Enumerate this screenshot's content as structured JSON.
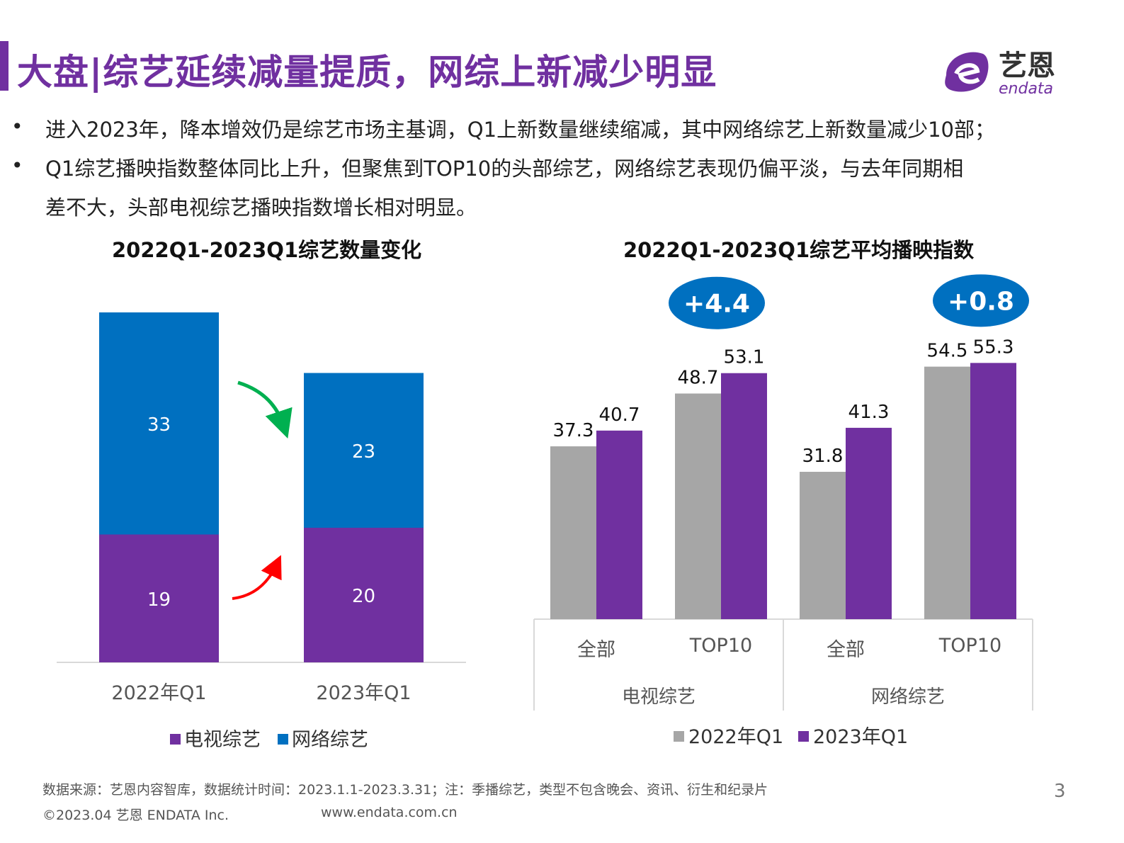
{
  "header": {
    "title": "大盘|综艺延续减量提质，网综上新减少明显",
    "logo_text": "艺恩",
    "logo_sub": "endata"
  },
  "bullets": [
    "进入2023年，降本增效仍是综艺市场主基调，Q1上新数量继续缩减，其中网络综艺上新数量减少10部；",
    "Q1综艺播映指数整体同比上升，但聚焦到TOP10的头部综艺，网络综艺表现仍偏平淡，与去年同期相",
    "差不大，头部电视综艺播映指数增长相对明显。"
  ],
  "chart_data": [
    {
      "type": "bar",
      "stacked": true,
      "title": "2022Q1-2023Q1综艺数量变化",
      "categories": [
        "2022年Q1",
        "2023年Q1"
      ],
      "series": [
        {
          "name": "电视综艺",
          "values": [
            19,
            20
          ],
          "color": "#7030a0"
        },
        {
          "name": "网络综艺",
          "values": [
            33,
            23
          ],
          "color": "#0070c0"
        }
      ],
      "legend_position": "bottom",
      "annotations": [
        {
          "type": "arrow",
          "direction": "down",
          "color": "#00b050"
        },
        {
          "type": "arrow",
          "direction": "up",
          "color": "#ff0000"
        }
      ],
      "grid": false
    },
    {
      "type": "bar",
      "title": "2022Q1-2023Q1综艺平均播映指数",
      "groups": [
        {
          "label": "电视综艺",
          "categories": [
            "全部",
            "TOP10"
          ]
        },
        {
          "label": "网络综艺",
          "categories": [
            "全部",
            "TOP10"
          ]
        }
      ],
      "series": [
        {
          "name": "2022年Q1",
          "values": [
            37.3,
            48.7,
            31.8,
            54.5
          ],
          "color": "#a6a6a6"
        },
        {
          "name": "2023年Q1",
          "values": [
            40.7,
            53.1,
            41.3,
            55.3
          ],
          "color": "#7030a0"
        }
      ],
      "badges": [
        {
          "text": "+4.4",
          "category_index": 1,
          "color": "#0070c0"
        },
        {
          "text": "+0.8",
          "category_index": 3,
          "color": "#0070c0"
        }
      ],
      "legend_position": "bottom",
      "grid": false
    }
  ],
  "footer": {
    "source": "数据来源：艺恩内容智库，数据统计时间：2023.1.1-2023.3.31；注：季播综艺，类型不包含晚会、资讯、衍生和纪录片",
    "copyright": "©2023.04 艺恩 ENDATA Inc.",
    "website": "www.endata.com.cn",
    "page_number": "3"
  }
}
